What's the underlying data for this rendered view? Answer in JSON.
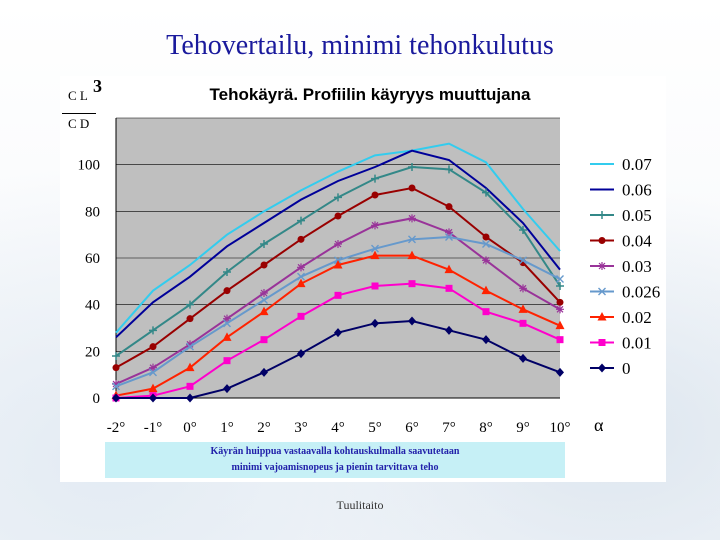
{
  "slide": {
    "title": "Tehovertailu, minimi tehonkulutus",
    "footer": "Tuulitaito",
    "caption_line1": "Käyrän huippua vastaavalla kohtauskulmalla saavutetaan",
    "caption_line2": "minimi vajoamisnopeus ja pienin tarvittava teho"
  },
  "chart_data": {
    "type": "line",
    "title": "Tehokäyrä. Profiilin käyryys muuttujana",
    "ylabel_num": "C L",
    "ylabel_exp": "3",
    "ylabel_den": "C D",
    "xlabel": "α",
    "ylim": [
      0,
      120
    ],
    "xlim": [
      -2,
      10
    ],
    "yticks": [
      "0",
      "20",
      "40",
      "60",
      "80",
      "100"
    ],
    "xticks": [
      "-2°",
      "-1°",
      "0°",
      "1°",
      "2°",
      "3°",
      "4°",
      "5°",
      "6°",
      "7°",
      "8°",
      "9°",
      "10°"
    ],
    "grid": true,
    "legend_position": "right",
    "series": [
      {
        "name": "0.07",
        "color": "#33ccee",
        "marker": "none",
        "x": [
          -2,
          -1,
          0,
          1,
          2,
          3,
          4,
          5,
          6,
          7,
          8,
          9,
          10
        ],
        "values": [
          28,
          46,
          57,
          70,
          80,
          89,
          97,
          104,
          106,
          109,
          101,
          81,
          63
        ]
      },
      {
        "name": "0.06",
        "color": "#000099",
        "marker": "none",
        "x": [
          -2,
          -1,
          0,
          1,
          2,
          3,
          4,
          5,
          6,
          7,
          8,
          9,
          10
        ],
        "values": [
          26,
          41,
          52,
          65,
          75,
          85,
          93,
          99,
          106,
          102,
          90,
          75,
          55
        ]
      },
      {
        "name": "0.05",
        "color": "#338888",
        "marker": "plus",
        "x": [
          -2,
          -1,
          0,
          1,
          2,
          3,
          4,
          5,
          6,
          7,
          8,
          9,
          10
        ],
        "values": [
          18,
          29,
          40,
          54,
          66,
          76,
          86,
          94,
          99,
          98,
          88,
          72,
          48
        ]
      },
      {
        "name": "0.04",
        "color": "#990000",
        "marker": "circle",
        "x": [
          -2,
          -1,
          0,
          1,
          2,
          3,
          4,
          5,
          6,
          7,
          8,
          9,
          10
        ],
        "values": [
          13,
          22,
          34,
          46,
          57,
          68,
          78,
          87,
          90,
          82,
          69,
          58,
          41
        ]
      },
      {
        "name": "0.03",
        "color": "#993399",
        "marker": "star",
        "x": [
          -2,
          -1,
          0,
          1,
          2,
          3,
          4,
          5,
          6,
          7,
          8,
          9,
          10
        ],
        "values": [
          6,
          13,
          23,
          34,
          45,
          56,
          66,
          74,
          77,
          71,
          59,
          47,
          38
        ]
      },
      {
        "name": "0.026",
        "color": "#6699cc",
        "marker": "x",
        "x": [
          -2,
          -1,
          0,
          1,
          2,
          3,
          4,
          5,
          6,
          7,
          8,
          9,
          10
        ],
        "values": [
          5,
          11,
          22,
          32,
          42,
          52,
          59,
          64,
          68,
          69,
          66,
          59,
          51
        ]
      },
      {
        "name": "0.02",
        "color": "#ff2200",
        "marker": "triangle",
        "x": [
          -2,
          -1,
          0,
          1,
          2,
          3,
          4,
          5,
          6,
          7,
          8,
          9,
          10
        ],
        "values": [
          1,
          4,
          13,
          26,
          37,
          49,
          57,
          61,
          61,
          55,
          46,
          38,
          31
        ]
      },
      {
        "name": "0.01",
        "color": "#ff00cc",
        "marker": "square",
        "x": [
          -2,
          -1,
          0,
          1,
          2,
          3,
          4,
          5,
          6,
          7,
          8,
          9,
          10
        ],
        "values": [
          0,
          1,
          5,
          16,
          25,
          35,
          44,
          48,
          49,
          47,
          37,
          32,
          25
        ]
      },
      {
        "name": "0",
        "color": "#000066",
        "marker": "diamond",
        "x": [
          -2,
          -1,
          0,
          1,
          2,
          3,
          4,
          5,
          6,
          7,
          8,
          9,
          10
        ],
        "values": [
          0,
          0,
          0,
          4,
          11,
          19,
          28,
          32,
          33,
          29,
          25,
          17,
          11
        ]
      }
    ]
  }
}
